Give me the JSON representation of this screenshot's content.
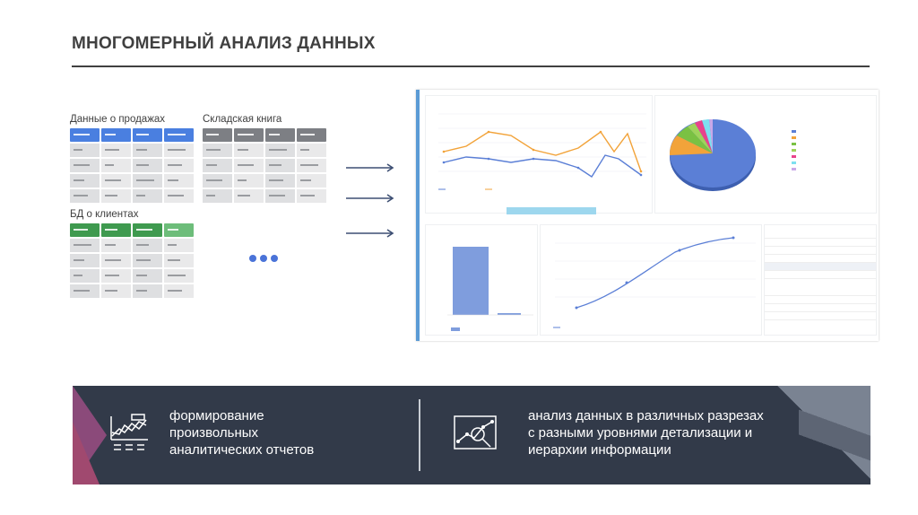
{
  "slide": {
    "title": "МНОГОМЕРНЫЙ АНАЛИЗ ДАННЫХ"
  },
  "sources": [
    {
      "label": "Данные о продажах",
      "color": "#4a7fe0"
    },
    {
      "label": "Складская книга",
      "color": "#7d7f84"
    },
    {
      "label": "БД о клиентах",
      "color": "#3f9a4f"
    }
  ],
  "features": [
    {
      "text_lines": [
        "формирование",
        "произвольных",
        "аналитических отчетов"
      ],
      "icon": "line-chart-report-icon"
    },
    {
      "text_lines": [
        "анализ данных в различных разрезах",
        "с разными уровнями детализации и",
        "иерархии информации"
      ],
      "icon": "magnifier-chart-icon"
    }
  ],
  "colors": {
    "accent_blue": "#4a73d8",
    "bottom_band": "#323a49",
    "series_blue": "#5b7fd6",
    "series_orange": "#f2a33a"
  }
}
